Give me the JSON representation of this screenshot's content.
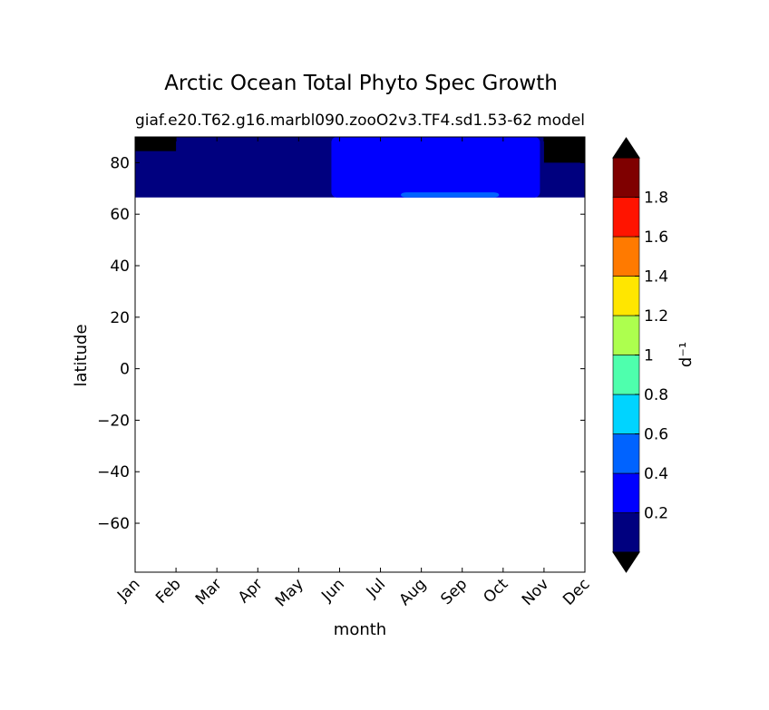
{
  "chart_data": {
    "type": "heatmap",
    "title": "Arctic Ocean Total Phyto Spec Growth",
    "subtitle_left": "giaf.e20.T62.g16.marbl090.zooO2v3.TF4.sd1.53-62",
    "subtitle_right": "model",
    "xlabel": "month",
    "ylabel": "latitude",
    "x_ticks": [
      "Jan",
      "Feb",
      "Mar",
      "Apr",
      "May",
      "Jun",
      "Jul",
      "Aug",
      "Sep",
      "Oct",
      "Nov",
      "Dec"
    ],
    "x_range": [
      0,
      11
    ],
    "ylim": [
      -79,
      90
    ],
    "y_ticks": [
      80,
      60,
      40,
      20,
      0,
      -20,
      -40,
      -60
    ],
    "y_tick_labels": [
      "80",
      "60",
      "40",
      "20",
      "0",
      "−20",
      "−40",
      "−60"
    ],
    "data_lat_range": [
      66.5,
      90
    ],
    "regions": [
      {
        "level": "below_0",
        "color": "#000000",
        "lat_min": 84.5,
        "lat_max": 90,
        "month_min": 0,
        "month_max": 1
      },
      {
        "level": "below_0",
        "color": "#000000",
        "lat_min": 80,
        "lat_max": 90,
        "month_min": 10,
        "month_max": 11
      },
      {
        "level": "0-0.2",
        "color": "#00007f",
        "lat_min": 66.5,
        "lat_max": 90,
        "month_min": 0,
        "month_max": 11
      },
      {
        "level": "0.2-0.4",
        "color": "#0000ff",
        "lat_min": 66.5,
        "lat_max": 90,
        "month_min": 4.8,
        "month_max": 9.9
      },
      {
        "level": "0.4-0.6",
        "color": "#0063ff",
        "lat_min": 66.5,
        "lat_max": 68.5,
        "month_min": 6.5,
        "month_max": 8.9
      }
    ],
    "colorbar": {
      "label": "d⁻¹",
      "levels": [
        0,
        0.2,
        0.4,
        0.6,
        0.8,
        1.0,
        1.2,
        1.4,
        1.6,
        1.8,
        2.0
      ],
      "tick_labels": [
        "0.2",
        "0.4",
        "0.6",
        "0.8",
        "1",
        "1.2",
        "1.4",
        "1.6",
        "1.8"
      ],
      "colors": [
        "#00007f",
        "#0000ff",
        "#0063ff",
        "#00d4ff",
        "#4effad",
        "#adff4e",
        "#ffe600",
        "#ff7a00",
        "#ff1400",
        "#7f0000"
      ],
      "under_color": "#000000",
      "over_color": "#000000"
    }
  }
}
